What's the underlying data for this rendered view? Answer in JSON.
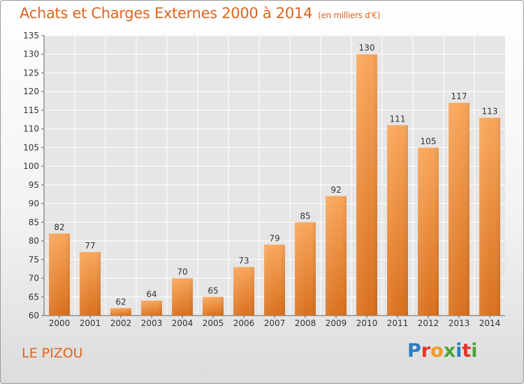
{
  "header": {
    "title": "Achats et Charges Externes 2000 à 2014",
    "unit": "(en milliers d'€)"
  },
  "commune": "LE PIZOU",
  "logo": {
    "text": "Proxiti",
    "letters": [
      "P",
      "r",
      "o",
      "x",
      "i",
      "t",
      "i"
    ],
    "colors": [
      "#2a7fc1",
      "#e8322b",
      "#f39a1d",
      "#4aa533",
      "#2a7fc1",
      "#e8322b",
      "#4aa533"
    ]
  },
  "chart_data": {
    "type": "bar",
    "title": "Achats et Charges Externes 2000 à 2014",
    "subtitle": "(en milliers d'€)",
    "categories": [
      "2000",
      "2001",
      "2002",
      "2003",
      "2004",
      "2005",
      "2006",
      "2007",
      "2008",
      "2009",
      "2010",
      "2011",
      "2012",
      "2013",
      "2014"
    ],
    "values": [
      82,
      77,
      62,
      64,
      70,
      65,
      73,
      79,
      85,
      92,
      130,
      111,
      105,
      117,
      113
    ],
    "ylim": [
      60,
      135
    ],
    "yticks": [
      60,
      65,
      70,
      75,
      80,
      85,
      90,
      95,
      100,
      105,
      110,
      115,
      120,
      125,
      130,
      135
    ],
    "grid": true,
    "bar_color": "#f08a2e",
    "xlabel": "",
    "ylabel": ""
  }
}
